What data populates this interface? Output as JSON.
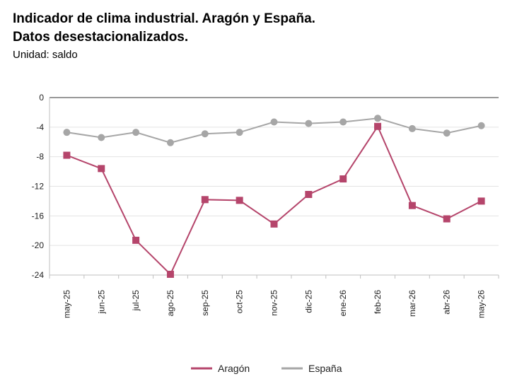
{
  "title_line1": "Indicador de clima industrial. Aragón y España.",
  "title_line2": "Datos desestacionalizados.",
  "subtitle": "Unidad: saldo",
  "chart_data": {
    "type": "line",
    "categories": [
      "may-25",
      "jun-25",
      "jul-25",
      "ago-25",
      "sep-25",
      "oct-25",
      "nov-25",
      "dic-25",
      "ene-26",
      "feb-26",
      "mar-26",
      "abr-26",
      "may-26"
    ],
    "series": [
      {
        "name": "Aragón",
        "color": "#b5456b",
        "marker": "square",
        "values": [
          -7.8,
          -9.6,
          -19.3,
          -23.9,
          -13.8,
          -13.9,
          -17.1,
          -13.1,
          -11.0,
          -3.9,
          -14.6,
          -16.4,
          -14.0
        ]
      },
      {
        "name": "España",
        "color": "#a6a6a6",
        "marker": "circle",
        "values": [
          -4.7,
          -5.4,
          -4.7,
          -6.1,
          -4.9,
          -4.7,
          -3.3,
          -3.5,
          -3.3,
          -2.8,
          -4.2,
          -4.8,
          -3.8
        ]
      }
    ],
    "ylim": [
      -24,
      0
    ],
    "yticks": [
      "0",
      "-4",
      "-8",
      "-12",
      "-16",
      "-20",
      "-24"
    ],
    "ytick_values": [
      0,
      -4,
      -8,
      -12,
      -16,
      -20,
      -24
    ],
    "grid": true,
    "legend_position": "bottom"
  }
}
